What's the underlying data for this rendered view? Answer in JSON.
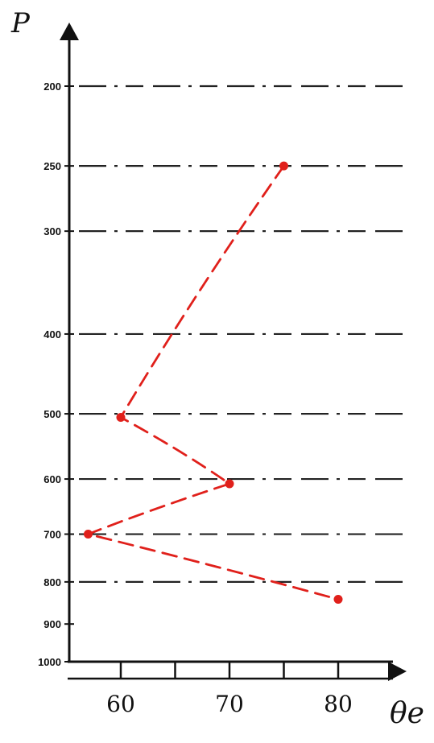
{
  "chart_data": {
    "type": "line",
    "title": "",
    "xlabel": "θe",
    "ylabel": "P",
    "x_ticks": [
      60,
      70,
      80
    ],
    "y_ticks": [
      200,
      250,
      300,
      400,
      500,
      600,
      700,
      800,
      900,
      1000
    ],
    "y_scale": "log",
    "y_inverted": true,
    "xlim": [
      56,
      84
    ],
    "ylim": [
      1000,
      200
    ],
    "grid": "dash-dot horizontal lines at each pressure level",
    "series": [
      {
        "color": "#e0201b",
        "style": "dashed",
        "points": [
          {
            "x": 75,
            "y": 250
          },
          {
            "x": 60,
            "y": 505
          },
          {
            "x": 70,
            "y": 608
          },
          {
            "x": 57,
            "y": 700
          },
          {
            "x": 80,
            "y": 840
          }
        ]
      }
    ]
  },
  "colors": {
    "axis": "#111111",
    "data": "#e0201b"
  }
}
